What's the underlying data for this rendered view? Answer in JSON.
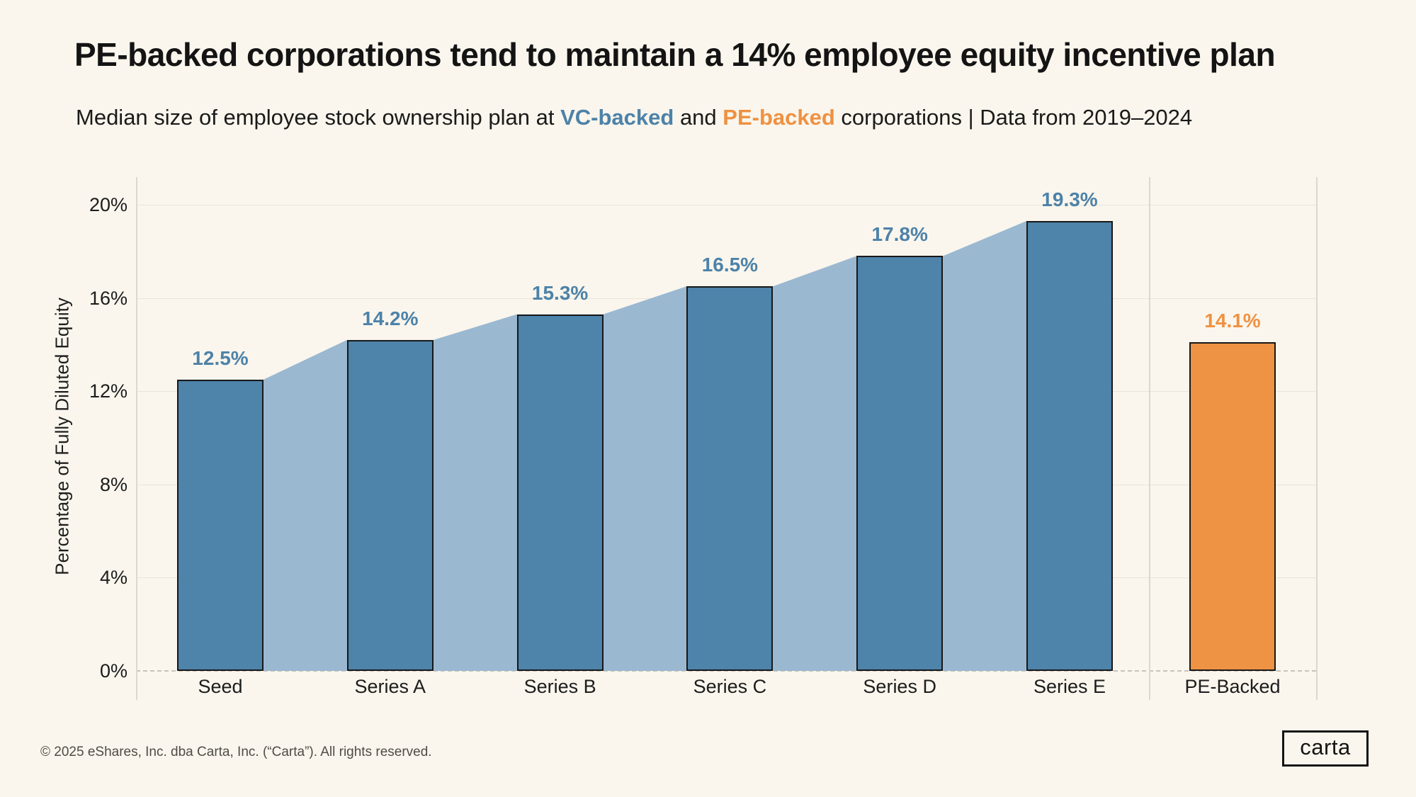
{
  "page": {
    "title": "PE-backed corporations tend to maintain a 14% employee equity incentive plan",
    "subtitle": {
      "prefix": "Median size of employee stock ownership plan at ",
      "vc_label": "VC-backed",
      "middle": " and ",
      "pe_label": "PE-backed",
      "suffix": " corporations | Data from 2019–2024"
    },
    "footer": "© 2025 eShares, Inc. dba Carta, Inc. (“Carta”). All rights reserved.",
    "logo_text": "carta"
  },
  "colors": {
    "background": "#faf6ed",
    "vc_bar": "#4e83aa",
    "vc_area": "#9bb8d1",
    "vc_label": "#4d82a8",
    "pe_bar": "#ee9243",
    "pe_label": "#ef9141",
    "bar_border": "#181818",
    "gridline": "#e9e5d9",
    "text": "#141414"
  },
  "chart_data": {
    "type": "bar",
    "title": "PE-backed corporations tend to maintain a 14% employee equity incentive plan",
    "subtitle": "Median size of employee stock ownership plan at VC-backed and PE-backed corporations | Data from 2019–2024",
    "ylabel": "Percentage of Fully Diluted Equity",
    "xlabel": "",
    "ylim": [
      0,
      20
    ],
    "grid": true,
    "legend_position": "none",
    "y_ticks": [
      {
        "label": "0%",
        "value": 0
      },
      {
        "label": "4%",
        "value": 4
      },
      {
        "label": "8%",
        "value": 8
      },
      {
        "label": "12%",
        "value": 12
      },
      {
        "label": "16%",
        "value": 16
      },
      {
        "label": "20%",
        "value": 20
      }
    ],
    "series": [
      {
        "name": "VC-backed",
        "style": "bar-with-area-overlay",
        "categories": [
          "Seed",
          "Series A",
          "Series B",
          "Series C",
          "Series D",
          "Series E"
        ],
        "values": [
          12.5,
          14.2,
          15.3,
          16.5,
          17.8,
          19.3
        ],
        "value_labels": [
          "12.5%",
          "14.2%",
          "15.3%",
          "16.5%",
          "17.8%",
          "19.3%"
        ]
      },
      {
        "name": "PE-backed",
        "style": "bar",
        "categories": [
          "PE-Backed"
        ],
        "values": [
          14.1
        ],
        "value_labels": [
          "14.1%"
        ]
      }
    ]
  }
}
